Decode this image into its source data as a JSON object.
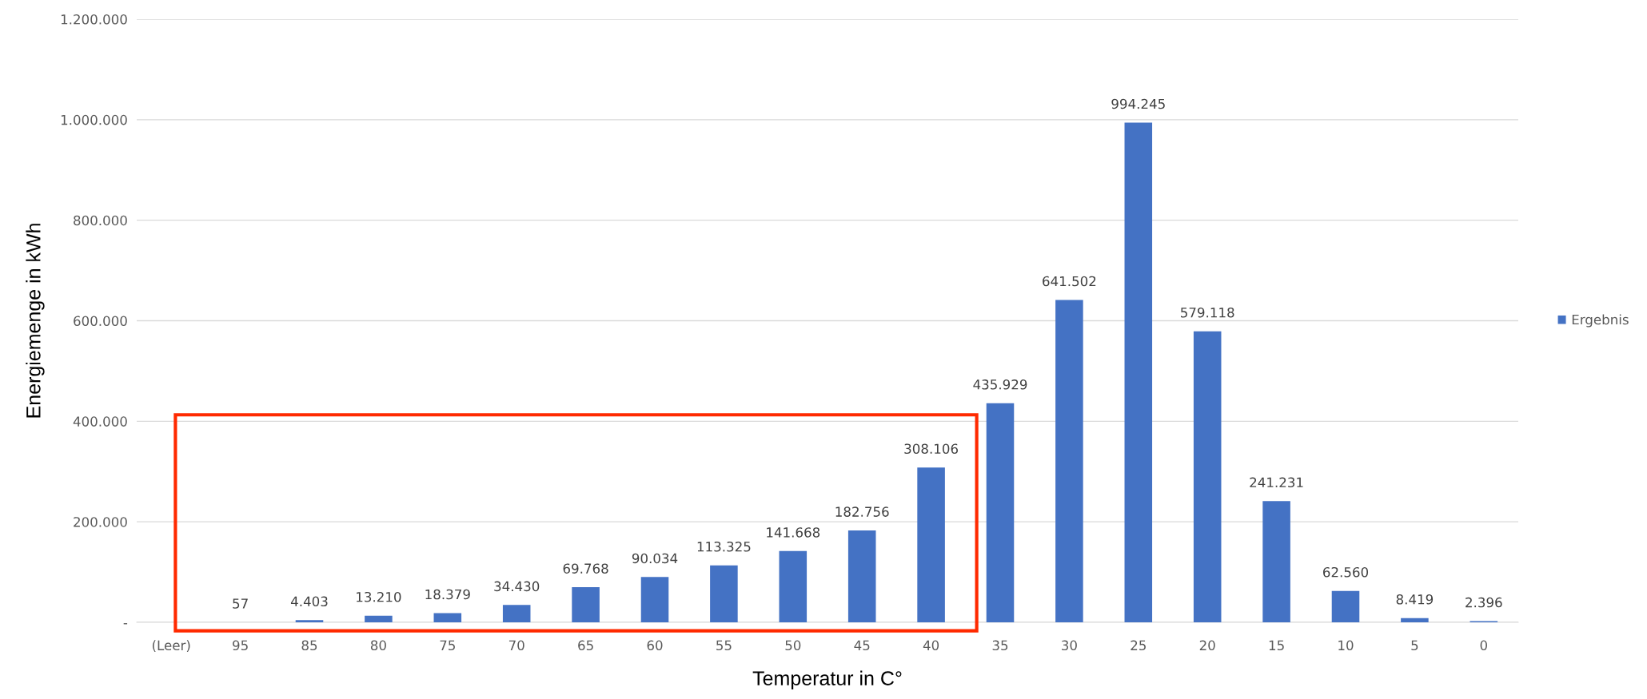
{
  "chart_data": {
    "type": "bar",
    "xlabel": "Temperatur in C°",
    "ylabel": "Energiemenge in kWh",
    "categories": [
      "(Leer)",
      "95",
      "85",
      "80",
      "75",
      "70",
      "65",
      "60",
      "55",
      "50",
      "45",
      "40",
      "35",
      "30",
      "25",
      "20",
      "15",
      "10",
      "5",
      "0"
    ],
    "series": [
      {
        "name": "Ergebnis",
        "color": "#4472c4",
        "values": [
          null,
          57,
          4403,
          13210,
          18379,
          34430,
          69768,
          90034,
          113325,
          141668,
          182756,
          308106,
          435929,
          641502,
          994245,
          579118,
          241231,
          62560,
          8419,
          2396
        ],
        "value_labels": [
          null,
          "57",
          "4.403",
          "13.210",
          "18.379",
          "34.430",
          "69.768",
          "90.034",
          "113.325",
          "141.668",
          "182.756",
          "308.106",
          "435.929",
          "641.502",
          "994.245",
          "579.118",
          "241.231",
          "62.560",
          "8.419",
          "2.396"
        ]
      }
    ],
    "ylim": [
      0,
      1200000
    ],
    "yticks": [
      {
        "value": 0,
        "label": "-"
      },
      {
        "value": 200000,
        "label": "200.000"
      },
      {
        "value": 400000,
        "label": "400.000"
      },
      {
        "value": 600000,
        "label": "600.000"
      },
      {
        "value": 800000,
        "label": "800.000"
      },
      {
        "value": 1000000,
        "label": "1.000.000"
      },
      {
        "value": 1200000,
        "label": "1.200.000"
      }
    ],
    "grid": "y",
    "legend": "right"
  }
}
